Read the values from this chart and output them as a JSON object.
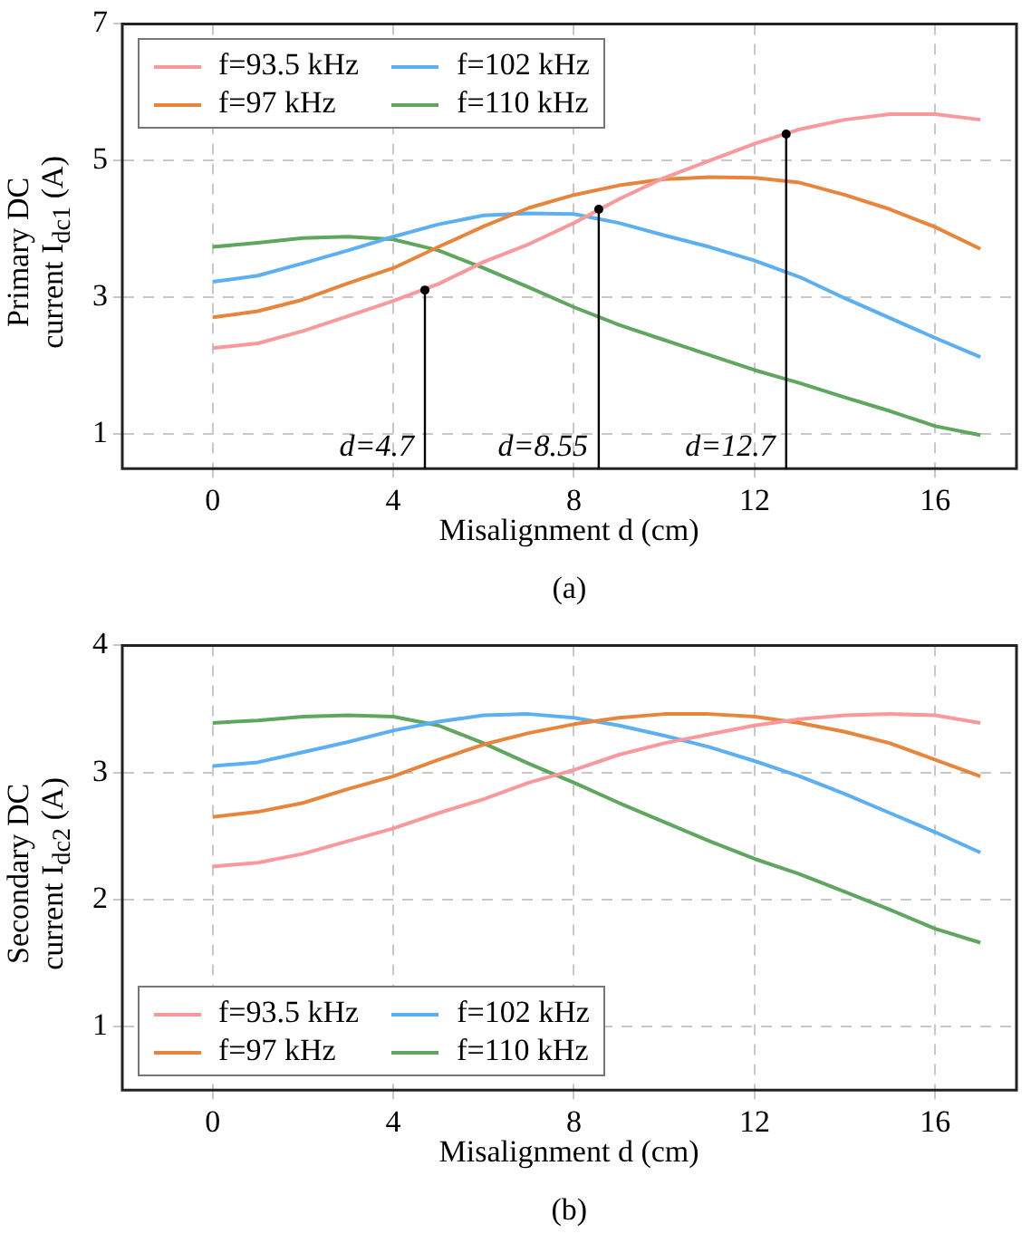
{
  "chart_data": [
    {
      "type": "line",
      "xlabel": "Misalignment d (cm)",
      "ylabel": "Primary DC current I$_{dc1}$ (A)",
      "x": [
        0,
        1,
        2,
        3,
        4,
        5,
        6,
        7,
        8,
        9,
        10,
        11,
        12,
        13,
        14,
        15,
        16,
        17
      ],
      "series": [
        {
          "name": "f=93.5 kHz",
          "color": "#f9999b",
          "values": [
            2.26,
            2.33,
            2.51,
            2.73,
            2.95,
            3.2,
            3.52,
            3.78,
            4.09,
            4.44,
            4.75,
            5.0,
            5.25,
            5.46,
            5.6,
            5.68,
            5.68,
            5.6
          ]
        },
        {
          "name": "f=97 kHz",
          "color": "#e8853c",
          "values": [
            2.71,
            2.8,
            2.97,
            3.21,
            3.43,
            3.74,
            4.04,
            4.31,
            4.5,
            4.64,
            4.73,
            4.76,
            4.75,
            4.68,
            4.5,
            4.29,
            4.03,
            3.71
          ]
        },
        {
          "name": "f=102 kHz",
          "color": "#5cb0f2",
          "values": [
            3.23,
            3.32,
            3.5,
            3.69,
            3.89,
            4.07,
            4.2,
            4.23,
            4.22,
            4.09,
            3.91,
            3.74,
            3.54,
            3.3,
            2.99,
            2.7,
            2.41,
            2.13
          ]
        },
        {
          "name": "f=110 kHz",
          "color": "#5fa65f",
          "values": [
            3.74,
            3.8,
            3.87,
            3.89,
            3.85,
            3.69,
            3.43,
            3.15,
            2.86,
            2.6,
            2.38,
            2.16,
            1.94,
            1.75,
            1.54,
            1.34,
            1.12,
            0.99
          ]
        }
      ],
      "xlim": [
        -2,
        17.8
      ],
      "xticks": [
        0,
        4,
        8,
        12,
        16
      ],
      "ylim": [
        0.5,
        7
      ],
      "yticks": [
        1,
        3,
        5,
        7
      ],
      "grid": true,
      "legend": "top left",
      "line_style": "solid",
      "annotations": [
        {
          "text": "d=4.7",
          "x": 4.7,
          "y": 3.11
        },
        {
          "text": "d=8.55",
          "x": 8.55,
          "y": 4.29
        },
        {
          "text": "d=12.7",
          "x": 12.7,
          "y": 5.39
        },
        "(a)"
      ]
    },
    {
      "type": "line",
      "xlabel": "Misalignment d (cm)",
      "ylabel": "Secondary DC current I$_{dc2}$ (A)",
      "x": [
        0,
        1,
        2,
        3,
        4,
        5,
        6,
        7,
        8,
        9,
        10,
        11,
        12,
        13,
        14,
        15,
        16,
        17
      ],
      "series": [
        {
          "name": "f=93.5 kHz",
          "color": "#f9999b",
          "values": [
            2.26,
            2.29,
            2.36,
            2.46,
            2.56,
            2.68,
            2.79,
            2.92,
            3.02,
            3.14,
            3.23,
            3.3,
            3.37,
            3.42,
            3.45,
            3.46,
            3.45,
            3.39
          ]
        },
        {
          "name": "f=97 kHz",
          "color": "#e8853c",
          "values": [
            2.65,
            2.69,
            2.76,
            2.87,
            2.97,
            3.1,
            3.22,
            3.31,
            3.38,
            3.43,
            3.46,
            3.46,
            3.44,
            3.39,
            3.32,
            3.23,
            3.1,
            2.97
          ]
        },
        {
          "name": "f=102 kHz",
          "color": "#5cb0f2",
          "values": [
            3.05,
            3.08,
            3.16,
            3.24,
            3.33,
            3.4,
            3.45,
            3.46,
            3.43,
            3.37,
            3.29,
            3.2,
            3.09,
            2.97,
            2.83,
            2.68,
            2.53,
            2.37
          ]
        },
        {
          "name": "f=110 kHz",
          "color": "#5fa65f",
          "values": [
            3.39,
            3.41,
            3.44,
            3.45,
            3.44,
            3.37,
            3.23,
            3.07,
            2.92,
            2.76,
            2.61,
            2.46,
            2.32,
            2.2,
            2.06,
            1.92,
            1.77,
            1.66
          ]
        }
      ],
      "xlim": [
        -2,
        17.8
      ],
      "xticks": [
        0,
        4,
        8,
        12,
        16
      ],
      "ylim": [
        0.5,
        4
      ],
      "yticks": [
        1,
        2,
        3,
        4
      ],
      "grid": true,
      "legend": "bottom left",
      "line_style": "solid",
      "annotations": [
        "(b)"
      ]
    }
  ]
}
